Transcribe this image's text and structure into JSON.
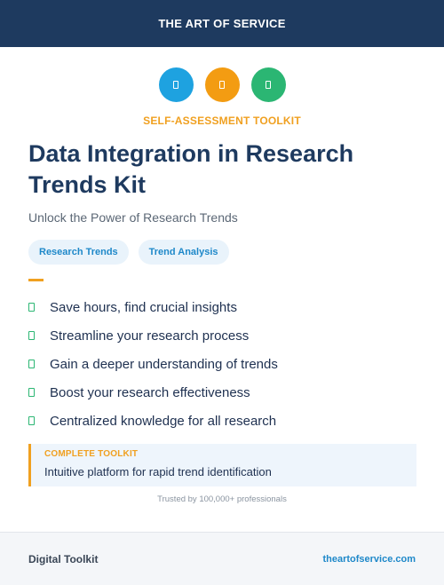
{
  "header": {
    "brand": "THE ART OF SERVICE"
  },
  "icons": [
    {
      "name": "toolkit-icon-1",
      "color": "#1ea2e0"
    },
    {
      "name": "toolkit-icon-2",
      "color": "#f39c12"
    },
    {
      "name": "toolkit-icon-3",
      "color": "#2bb673"
    }
  ],
  "eyebrow": "SELF-ASSESSMENT TOOLKIT",
  "title": "Data Integration in Research Trends Kit",
  "subtitle": "Unlock the Power of Research Trends",
  "tags": [
    "Research Trends",
    "Trend Analysis"
  ],
  "features": [
    "Save hours, find crucial insights",
    "Streamline your research process",
    "Gain a deeper understanding of trends",
    "Boost your research effectiveness",
    "Centralized knowledge for all research"
  ],
  "callout": {
    "kicker": "COMPLETE TOOLKIT",
    "description": "Intuitive platform for rapid trend identification"
  },
  "trusted": "Trusted by 100,000+ professionals",
  "footer": {
    "left": "Digital Toolkit",
    "right": "theartofservice.com"
  },
  "colors": {
    "header_bg": "#1e3a5f",
    "accent_orange": "#f0a020",
    "accent_blue": "#1e88c9",
    "accent_green": "#2bb673"
  }
}
